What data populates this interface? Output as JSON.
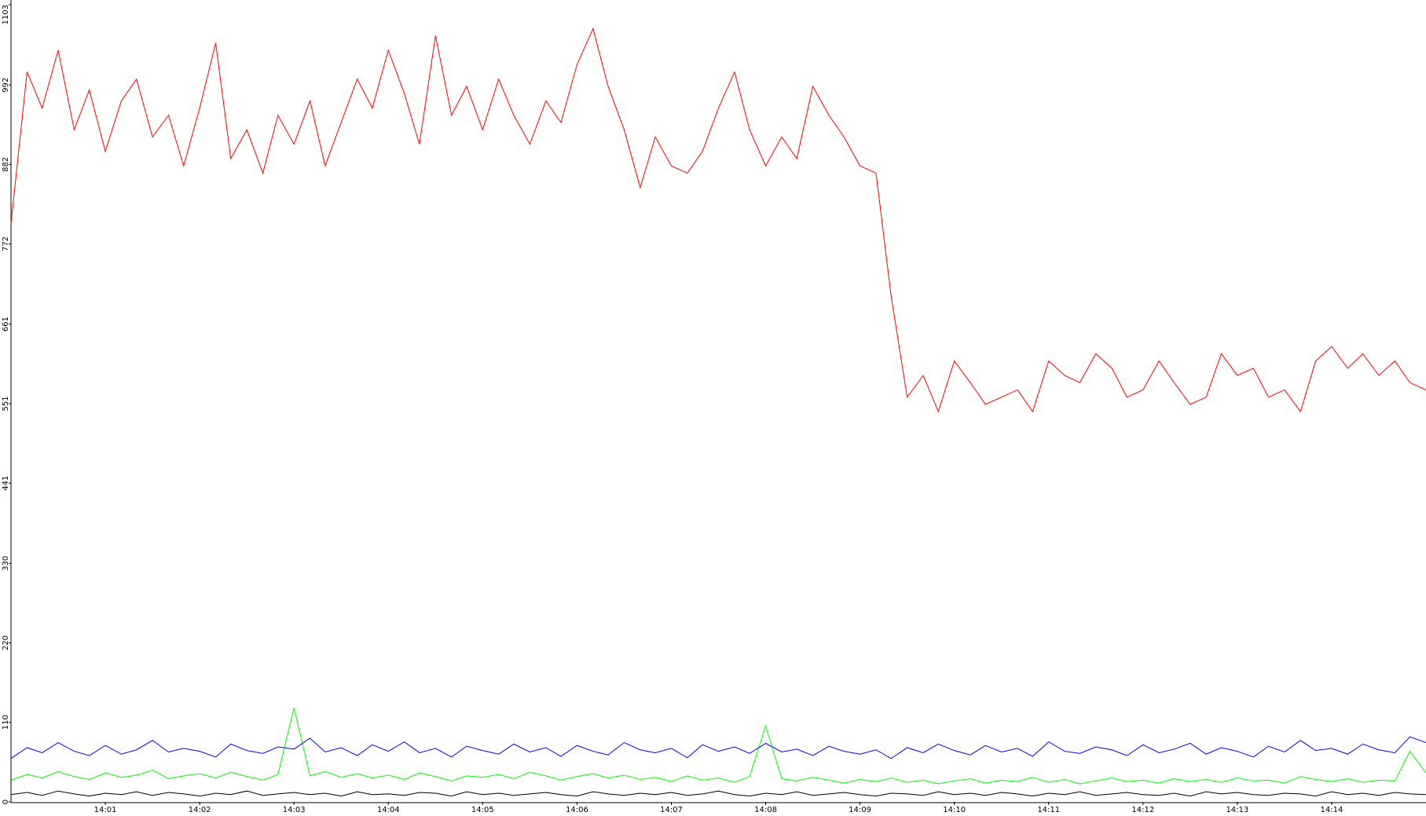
{
  "chart_data": {
    "type": "line",
    "x": [
      840,
      840.17,
      840.33,
      840.5,
      840.67,
      840.83,
      841,
      841.17,
      841.33,
      841.5,
      841.67,
      841.83,
      842,
      842.17,
      842.33,
      842.5,
      842.67,
      842.83,
      843,
      843.17,
      843.33,
      843.5,
      843.67,
      843.83,
      844,
      844.17,
      844.33,
      844.5,
      844.67,
      844.83,
      845,
      845.17,
      845.33,
      845.5,
      845.67,
      845.83,
      846,
      846.17,
      846.33,
      846.5,
      846.67,
      846.83,
      847,
      847.17,
      847.33,
      847.5,
      847.67,
      847.83,
      848,
      848.17,
      848.33,
      848.5,
      848.67,
      848.83,
      849,
      849.17,
      849.33,
      849.5,
      849.67,
      849.83,
      850,
      850.17,
      850.33,
      850.5,
      850.67,
      850.83,
      851,
      851.17,
      851.33,
      851.5,
      851.67,
      851.83,
      852,
      852.17,
      852.33,
      852.5,
      852.67,
      852.83,
      853,
      853.17,
      853.33,
      853.5,
      853.67,
      853.83,
      854,
      854.17,
      854.33,
      854.5,
      854.67,
      854.83,
      855
    ],
    "series": [
      {
        "color": "#ff0000",
        "values": [
          800,
          1010,
          960,
          1040,
          930,
          985,
          900,
          970,
          1000,
          920,
          950,
          880,
          960,
          1050,
          890,
          930,
          870,
          950,
          910,
          970,
          880,
          940,
          1000,
          960,
          1040,
          980,
          910,
          1060,
          950,
          990,
          930,
          1000,
          950,
          910,
          970,
          940,
          1020,
          1070,
          990,
          930,
          850,
          920,
          880,
          870,
          900,
          960,
          1010,
          930,
          880,
          920,
          890,
          990,
          950,
          920,
          880,
          870,
          700,
          560,
          590,
          540,
          610,
          580,
          550,
          560,
          570,
          540,
          610,
          590,
          580,
          620,
          600,
          560,
          570,
          610,
          580,
          550,
          560,
          620,
          590,
          600,
          560,
          570,
          540,
          610,
          630,
          600,
          620,
          590,
          610,
          580,
          570
        ]
      },
      {
        "color": "#0000ff",
        "values": [
          60,
          75,
          68,
          82,
          70,
          64,
          78,
          66,
          72,
          85,
          69,
          74,
          70,
          62,
          80,
          71,
          67,
          76,
          73,
          88,
          69,
          75,
          64,
          79,
          70,
          83,
          68,
          74,
          62,
          77,
          71,
          66,
          80,
          69,
          75,
          63,
          78,
          70,
          65,
          82,
          72,
          68,
          74,
          61,
          79,
          70,
          76,
          67,
          81,
          69,
          73,
          64,
          77,
          70,
          66,
          72,
          60,
          75,
          68,
          80,
          71,
          65,
          78,
          69,
          74,
          63,
          83,
          70,
          67,
          76,
          72,
          64,
          79,
          68,
          73,
          81,
          66,
          75,
          70,
          62,
          77,
          69,
          85,
          71,
          74,
          66,
          80,
          72,
          68,
          90,
          82
        ]
      },
      {
        "color": "#00ff00",
        "values": [
          30,
          38,
          33,
          42,
          35,
          31,
          40,
          34,
          37,
          44,
          32,
          36,
          39,
          33,
          41,
          35,
          30,
          38,
          130,
          36,
          42,
          34,
          39,
          33,
          37,
          31,
          40,
          35,
          29,
          36,
          34,
          38,
          32,
          41,
          36,
          30,
          35,
          39,
          33,
          37,
          31,
          34,
          28,
          36,
          30,
          33,
          27,
          35,
          105,
          32,
          29,
          34,
          30,
          26,
          31,
          28,
          33,
          27,
          30,
          25,
          29,
          32,
          26,
          30,
          28,
          34,
          27,
          31,
          25,
          29,
          33,
          28,
          30,
          26,
          32,
          28,
          31,
          27,
          33,
          29,
          30,
          26,
          35,
          31,
          28,
          32,
          27,
          30,
          29,
          70,
          40
        ]
      },
      {
        "color": "#000000",
        "values": [
          10,
          13,
          9,
          15,
          11,
          8,
          12,
          10,
          14,
          9,
          13,
          11,
          8,
          12,
          10,
          15,
          9,
          11,
          13,
          10,
          12,
          8,
          14,
          10,
          11,
          9,
          13,
          12,
          8,
          14,
          10,
          12,
          9,
          11,
          13,
          10,
          8,
          14,
          11,
          9,
          12,
          10,
          13,
          9,
          11,
          15,
          10,
          8,
          12,
          10,
          14,
          9,
          11,
          13,
          10,
          8,
          12,
          11,
          9,
          14,
          10,
          12,
          9,
          13,
          11,
          8,
          12,
          10,
          14,
          9,
          11,
          13,
          10,
          9,
          12,
          8,
          14,
          11,
          13,
          10,
          9,
          12,
          11,
          8,
          14,
          10,
          12,
          9,
          13,
          11,
          10
        ]
      }
    ],
    "xlim": [
      840,
      855
    ],
    "xticks": [
      {
        "value": 841,
        "label": "14:01"
      },
      {
        "value": 842,
        "label": "14:02"
      },
      {
        "value": 843,
        "label": "14:03"
      },
      {
        "value": 844,
        "label": "14:04"
      },
      {
        "value": 845,
        "label": "14:05"
      },
      {
        "value": 846,
        "label": "14:06"
      },
      {
        "value": 847,
        "label": "14:07"
      },
      {
        "value": 848,
        "label": "14:08"
      },
      {
        "value": 849,
        "label": "14:09"
      },
      {
        "value": 850,
        "label": "14:10"
      },
      {
        "value": 851,
        "label": "14:11"
      },
      {
        "value": 852,
        "label": "14:12"
      },
      {
        "value": 853,
        "label": "14:13"
      },
      {
        "value": 854,
        "label": "14:14"
      }
    ],
    "ylim": [
      0,
      1103
    ],
    "yticks": [
      0,
      110,
      220,
      330,
      441,
      551,
      661,
      772,
      882,
      992,
      1103
    ]
  }
}
